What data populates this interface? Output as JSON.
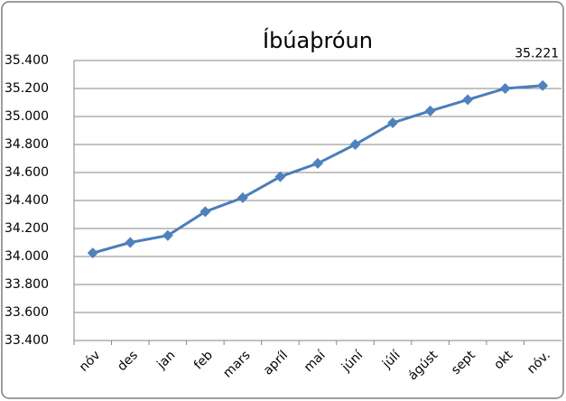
{
  "chart_data": {
    "type": "line",
    "title": "Íbúaþróun",
    "categories": [
      "nóv",
      "des",
      "jan",
      "feb",
      "mars",
      "apríl",
      "maí",
      "júní",
      "júlí",
      "ágúst",
      "sept",
      "okt",
      "nóv."
    ],
    "series": [
      {
        "color": "#4a7ebb",
        "marker_color": "#4f81bd",
        "values": [
          34025,
          34100,
          34150,
          34320,
          34420,
          34570,
          34665,
          34800,
          34955,
          35040,
          35120,
          35200,
          35221
        ],
        "value_labels": [
          null,
          null,
          null,
          null,
          null,
          null,
          null,
          null,
          null,
          null,
          null,
          null,
          "35.221"
        ]
      }
    ],
    "ylim": [
      33400,
      35400
    ],
    "yticks": [
      {
        "value": 33400,
        "label": "33.400"
      },
      {
        "value": 33600,
        "label": "33.600"
      },
      {
        "value": 33800,
        "label": "33.800"
      },
      {
        "value": 34000,
        "label": "34.000"
      },
      {
        "value": 34200,
        "label": "34.200"
      },
      {
        "value": 34400,
        "label": "34.400"
      },
      {
        "value": 34600,
        "label": "34.600"
      },
      {
        "value": 34800,
        "label": "34.800"
      },
      {
        "value": 35000,
        "label": "35.000"
      },
      {
        "value": 35200,
        "label": "35.200"
      },
      {
        "value": 35400,
        "label": "35.400"
      }
    ],
    "grid": true
  }
}
